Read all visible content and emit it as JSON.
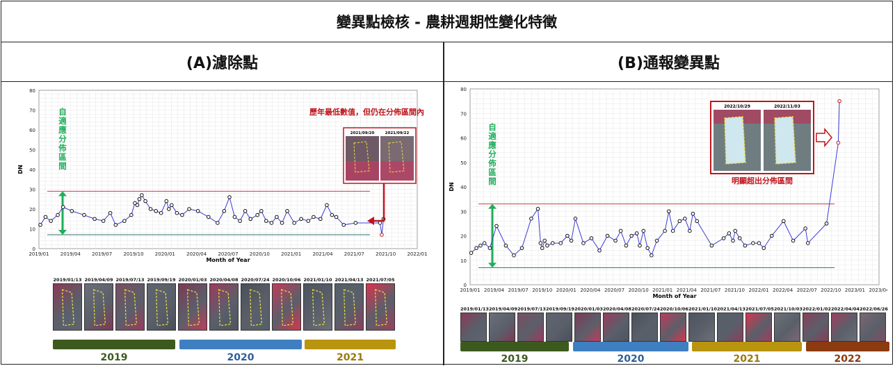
{
  "page_title": "變異點檢核 - 農耕週期性變化特徵",
  "panel_a": {
    "heading": "(A)濾除點",
    "adaptive_label": "自\n適\n應\n分\n佈\n區\n間",
    "annotation": "歷年最低數值，但仍在分佈區間內",
    "inset_dates": [
      "2021/09/20",
      "2021/09/22"
    ],
    "thumb_dates": [
      "2019/01/13",
      "2019/04/09",
      "2019/07/13",
      "2019/09/19",
      "2020/01/03",
      "2020/04/08",
      "2020/07/24",
      "2020/10/06",
      "2021/01/10",
      "2021/04/13",
      "2021/07/05"
    ],
    "years": [
      "2019",
      "2020",
      "2021"
    ]
  },
  "panel_b": {
    "heading": "(B)通報變異點",
    "adaptive_label": "自\n適\n應\n分\n佈\n區\n間",
    "annotation": "明顯超出分佈區間",
    "inset_dates": [
      "2022/10/29",
      "2022/11/03"
    ],
    "thumb_dates": [
      "2019/01/13",
      "2019/04/09",
      "2019/07/13",
      "2019/09/19",
      "2020/01/03",
      "2020/04/08",
      "2020/07/24",
      "2020/10/06",
      "2021/01/10",
      "2021/04/13",
      "2021/07/05",
      "2021/10/03",
      "2022/01/02",
      "2022/04/04",
      "2022/06/26"
    ],
    "years": [
      "2019",
      "2020",
      "2021",
      "2022"
    ]
  },
  "colors": {
    "line": "#3a3adb",
    "upper": "#c23a4a",
    "lower": "#2e6b6b",
    "arrow_green": "#1fae5a",
    "annot_red": "#c0141c",
    "y2019": "#3d5a1e",
    "y2020": "#3f7fc1",
    "y2021": "#b8940f",
    "y2022": "#8c3a10"
  },
  "chart_data": [
    {
      "type": "line",
      "ylabel": "DN",
      "xlabel": "Month of Year",
      "ylim": [
        0,
        80
      ],
      "yticks": [
        0,
        10,
        20,
        30,
        40,
        50,
        60,
        70,
        80
      ],
      "xticks": [
        "2019/01",
        "2019/04",
        "2019/07",
        "2019/10",
        "2020/01",
        "2020/04",
        "2020/07",
        "2020/10",
        "2021/01",
        "2021/04",
        "2021/07",
        "2021/10",
        "2022/01"
      ],
      "grid": true,
      "upper_bound": 29,
      "lower_bound": 7,
      "x": [
        "2019/01/05",
        "2019/01/20",
        "2019/02/05",
        "2019/02/25",
        "2019/03/10",
        "2019/04/05",
        "2019/05/10",
        "2019/06/10",
        "2019/07/05",
        "2019/07/25",
        "2019/08/10",
        "2019/09/05",
        "2019/09/25",
        "2019/10/05",
        "2019/10/12",
        "2019/10/18",
        "2019/10/25",
        "2019/11/05",
        "2019/11/20",
        "2019/12/05",
        "2019/12/20",
        "2020/01/05",
        "2020/01/12",
        "2020/01/20",
        "2020/02/05",
        "2020/02/20",
        "2020/03/10",
        "2020/04/05",
        "2020/05/05",
        "2020/06/01",
        "2020/06/20",
        "2020/07/05",
        "2020/07/20",
        "2020/08/05",
        "2020/08/20",
        "2020/09/05",
        "2020/09/25",
        "2020/10/06",
        "2020/10/20",
        "2020/11/05",
        "2020/11/20",
        "2020/12/05",
        "2020/12/20",
        "2021/01/10",
        "2021/01/30",
        "2021/02/20",
        "2021/03/05",
        "2021/03/25",
        "2021/04/13",
        "2021/04/28",
        "2021/05/10",
        "2021/06/01",
        "2021/07/05",
        "2021/09/15",
        "2021/09/20",
        "2021/09/25"
      ],
      "y": [
        12,
        16,
        14,
        17,
        21,
        19,
        17,
        15,
        14,
        18,
        12,
        14,
        17,
        23,
        22,
        25,
        27,
        24,
        20,
        19,
        18,
        24,
        20,
        22,
        18,
        17,
        20,
        19,
        16,
        13,
        19,
        26,
        16,
        14,
        19,
        15,
        17,
        19,
        14,
        13,
        16,
        13,
        19,
        13,
        15,
        14,
        16,
        15,
        22,
        17,
        16,
        12,
        13,
        13,
        7,
        15
      ]
    },
    {
      "type": "line",
      "ylabel": "DN",
      "xlabel": "Month of Year",
      "ylim": [
        0,
        80
      ],
      "yticks": [
        0,
        10,
        20,
        30,
        40,
        50,
        60,
        70,
        80
      ],
      "xticks": [
        "2019/01",
        "2019/04",
        "2019/07",
        "2019/10",
        "2020/01",
        "2020/04",
        "2020/07",
        "2020/10",
        "2021/01",
        "2021/04",
        "2021/07",
        "2021/10",
        "2022/01",
        "2022/04",
        "2022/07",
        "2022/10",
        "2023/01",
        "2023/04"
      ],
      "grid": true,
      "upper_bound": 33,
      "lower_bound": 7,
      "x": [
        "2019/01/05",
        "2019/01/25",
        "2019/02/10",
        "2019/02/25",
        "2019/03/15",
        "2019/04/10",
        "2019/05/15",
        "2019/06/15",
        "2019/07/15",
        "2019/08/20",
        "2019/09/15",
        "2019/09/25",
        "2019/10/01",
        "2019/10/10",
        "2019/10/20",
        "2019/11/10",
        "2019/12/10",
        "2020/01/05",
        "2020/01/20",
        "2020/02/05",
        "2020/03/05",
        "2020/04/05",
        "2020/05/05",
        "2020/06/05",
        "2020/07/05",
        "2020/07/25",
        "2020/08/15",
        "2020/09/05",
        "2020/09/25",
        "2020/10/06",
        "2020/10/20",
        "2020/11/05",
        "2020/11/20",
        "2020/12/10",
        "2021/01/10",
        "2021/01/25",
        "2021/02/10",
        "2021/03/05",
        "2021/03/25",
        "2021/04/13",
        "2021/04/25",
        "2021/05/10",
        "2021/07/05",
        "2021/08/20",
        "2021/09/10",
        "2021/09/25",
        "2021/10/03",
        "2021/10/20",
        "2021/11/10",
        "2021/12/10",
        "2022/01/02",
        "2022/01/20",
        "2022/02/20",
        "2022/04/04",
        "2022/05/10",
        "2022/06/26",
        "2022/07/05",
        "2022/09/15",
        "2022/10/29",
        "2022/11/03"
      ],
      "y": [
        13,
        15,
        16,
        17,
        15,
        24,
        16,
        12,
        15,
        27,
        31,
        17,
        15,
        18,
        16,
        17,
        17,
        20,
        18,
        27,
        17,
        19,
        14,
        20,
        18,
        22,
        16,
        20,
        21,
        16,
        22,
        15,
        12,
        18,
        22,
        30,
        22,
        26,
        27,
        22,
        29,
        26,
        16,
        19,
        21,
        18,
        22,
        19,
        16,
        17,
        17,
        15,
        20,
        26,
        18,
        23,
        17,
        25,
        58,
        75
      ]
    }
  ]
}
